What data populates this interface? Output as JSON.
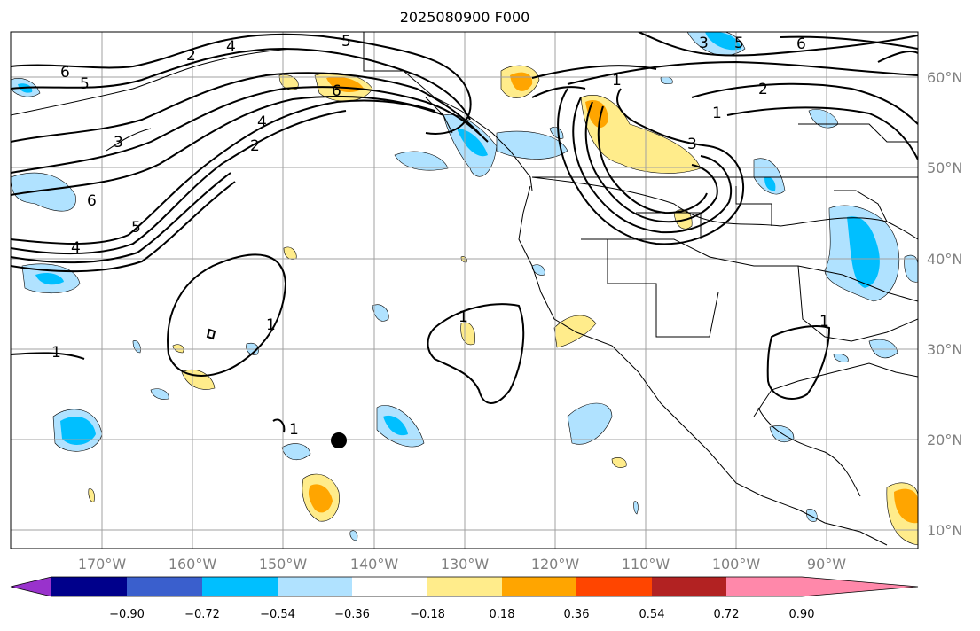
{
  "title": "2025080900 F000",
  "lat_labels": [
    "60°N",
    "50°N",
    "40°N",
    "30°N",
    "20°N",
    "10°N"
  ],
  "lon_labels": [
    "170°W",
    "160°W",
    "150°W",
    "140°W",
    "130°W",
    "120°W",
    "110°W",
    "100°W",
    "90°W"
  ],
  "colorbar": {
    "colors": [
      "#9932cc",
      "#00008b",
      "#3a5fcd",
      "#00bfff",
      "#b0e2ff",
      "#ffffff",
      "#ffec8b",
      "#ffa500",
      "#ff4500",
      "#b22222",
      "#ff88aa"
    ],
    "ticks": [
      "−0.90",
      "−0.72",
      "−0.54",
      "−0.36",
      "−0.18",
      "0.18",
      "0.36",
      "0.54",
      "0.72",
      "0.90"
    ]
  },
  "contour_labels": [
    "6",
    "5",
    "4",
    "2",
    "1",
    "3",
    "6",
    "5",
    "4",
    "2",
    "3",
    "4",
    "5",
    "6",
    "1",
    "2",
    "3",
    "5",
    "6",
    "1",
    "1",
    "1",
    "1",
    "1"
  ],
  "marker": "black-dot"
}
